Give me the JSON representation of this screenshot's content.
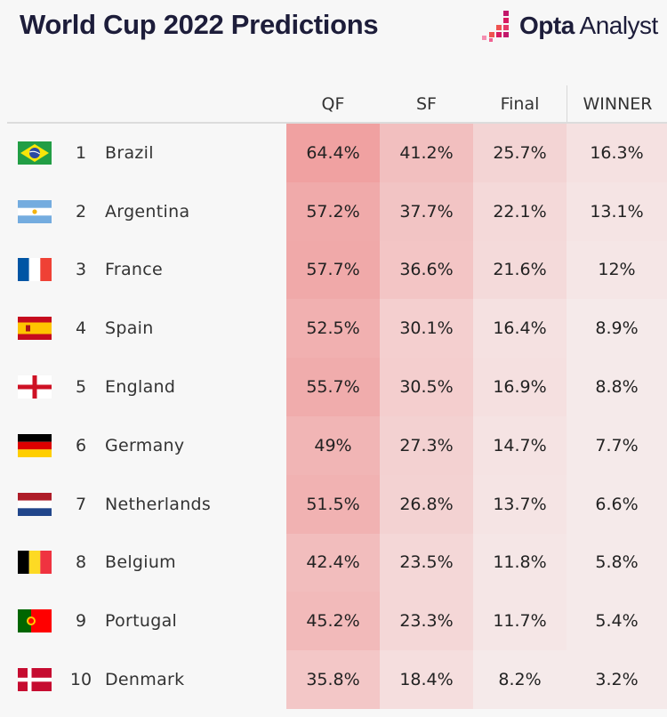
{
  "title": "World Cup 2022 Predictions",
  "brand": {
    "name_bold": "Opta",
    "name_light": "Analyst"
  },
  "chart_data": {
    "type": "table",
    "title": "World Cup 2022 Predictions",
    "columns": [
      "QF",
      "SF",
      "Final",
      "WINNER"
    ],
    "rows": [
      {
        "rank": "1",
        "team": "Brazil",
        "flag": "brazil-flag-icon",
        "values": [
          "64.4%",
          "41.2%",
          "25.7%",
          "16.3%"
        ]
      },
      {
        "rank": "2",
        "team": "Argentina",
        "flag": "argentina-flag-icon",
        "values": [
          "57.2%",
          "37.7%",
          "22.1%",
          "13.1%"
        ]
      },
      {
        "rank": "3",
        "team": "France",
        "flag": "france-flag-icon",
        "values": [
          "57.7%",
          "36.6%",
          "21.6%",
          "12%"
        ]
      },
      {
        "rank": "4",
        "team": "Spain",
        "flag": "spain-flag-icon",
        "values": [
          "52.5%",
          "30.1%",
          "16.4%",
          "8.9%"
        ]
      },
      {
        "rank": "5",
        "team": "England",
        "flag": "england-flag-icon",
        "values": [
          "55.7%",
          "30.5%",
          "16.9%",
          "8.8%"
        ]
      },
      {
        "rank": "6",
        "team": "Germany",
        "flag": "germany-flag-icon",
        "values": [
          "49%",
          "27.3%",
          "14.7%",
          "7.7%"
        ]
      },
      {
        "rank": "7",
        "team": "Netherlands",
        "flag": "netherlands-flag-icon",
        "values": [
          "51.5%",
          "26.8%",
          "13.7%",
          "6.6%"
        ]
      },
      {
        "rank": "8",
        "team": "Belgium",
        "flag": "belgium-flag-icon",
        "values": [
          "42.4%",
          "23.5%",
          "11.8%",
          "5.8%"
        ]
      },
      {
        "rank": "9",
        "team": "Portugal",
        "flag": "portugal-flag-icon",
        "values": [
          "45.2%",
          "23.3%",
          "11.7%",
          "5.4%"
        ]
      },
      {
        "rank": "10",
        "team": "Denmark",
        "flag": "denmark-flag-icon",
        "values": [
          "35.8%",
          "18.4%",
          "8.2%",
          "3.2%"
        ]
      }
    ],
    "heat_color": "#e84848"
  }
}
